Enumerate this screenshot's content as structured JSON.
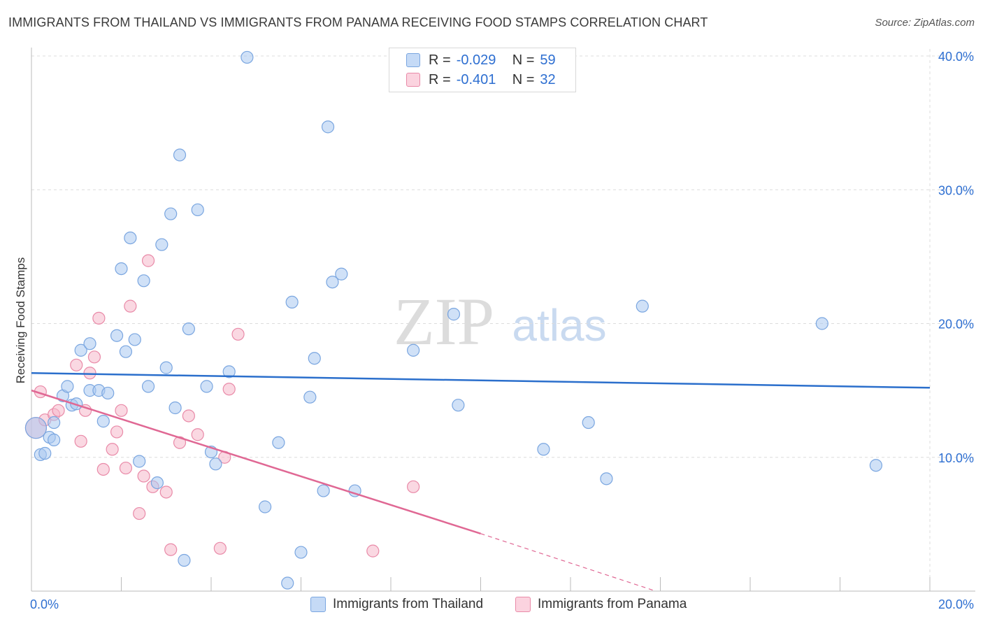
{
  "title": "IMMIGRANTS FROM THAILAND VS IMMIGRANTS FROM PANAMA RECEIVING FOOD STAMPS CORRELATION CHART",
  "source": "Source: ZipAtlas.com",
  "watermark": {
    "zip": "ZIP",
    "atlas": "atlas"
  },
  "legend": {
    "rows": [
      {
        "r_label": "R =",
        "r_value": "-0.029",
        "n_label": "N =",
        "n_value": "59",
        "color": "#a9c8f0"
      },
      {
        "r_label": "R =",
        "r_value": "-0.401",
        "n_label": "N =",
        "n_value": "32",
        "color": "#f5b8cb"
      }
    ]
  },
  "bottom_legend": {
    "thailand": "Immigrants from Thailand",
    "panama": "Immigrants from Panama"
  },
  "chart_data": {
    "type": "scatter",
    "title": "IMMIGRANTS FROM THAILAND VS IMMIGRANTS FROM PANAMA RECEIVING FOOD STAMPS CORRELATION CHART",
    "xlabel": "",
    "ylabel": "Receiving Food Stamps",
    "xlim": [
      0,
      20
    ],
    "ylim": [
      0,
      40
    ],
    "x_tick_labels": [
      "0.0%",
      "20.0%"
    ],
    "y_ticks": [
      10,
      20,
      30,
      40
    ],
    "y_tick_labels": [
      "10.0%",
      "20.0%",
      "30.0%",
      "40.0%"
    ],
    "grid": true,
    "colors": {
      "thailand": "#a9c8f0",
      "thailand_edge": "#7aa6e0",
      "thailand_line": "#2b6fcc",
      "panama": "#f5b8cb",
      "panama_edge": "#e98aa8",
      "panama_line": "#e06894"
    },
    "series": [
      {
        "name": "Immigrants from Thailand",
        "trend": {
          "x": [
            0,
            20
          ],
          "y": [
            16.3,
            15.2
          ]
        },
        "points": [
          [
            0.1,
            12.2
          ],
          [
            0.2,
            10.2
          ],
          [
            0.3,
            10.3
          ],
          [
            0.4,
            11.5
          ],
          [
            0.5,
            11.3
          ],
          [
            0.5,
            12.6
          ],
          [
            0.7,
            14.6
          ],
          [
            0.8,
            15.3
          ],
          [
            0.9,
            13.9
          ],
          [
            1.0,
            14.0
          ],
          [
            1.1,
            18.0
          ],
          [
            1.3,
            18.5
          ],
          [
            1.3,
            15.0
          ],
          [
            1.5,
            15.0
          ],
          [
            1.6,
            12.7
          ],
          [
            1.7,
            14.8
          ],
          [
            1.9,
            19.1
          ],
          [
            2.0,
            24.1
          ],
          [
            2.1,
            17.9
          ],
          [
            2.2,
            26.4
          ],
          [
            2.3,
            18.8
          ],
          [
            2.4,
            9.7
          ],
          [
            2.5,
            23.2
          ],
          [
            2.6,
            15.3
          ],
          [
            2.8,
            8.1
          ],
          [
            2.9,
            25.9
          ],
          [
            3.0,
            16.7
          ],
          [
            3.1,
            28.2
          ],
          [
            3.2,
            13.7
          ],
          [
            3.3,
            32.6
          ],
          [
            3.4,
            2.3
          ],
          [
            3.5,
            19.6
          ],
          [
            3.7,
            28.5
          ],
          [
            3.9,
            15.3
          ],
          [
            4.0,
            10.4
          ],
          [
            4.1,
            9.5
          ],
          [
            4.4,
            16.4
          ],
          [
            4.8,
            39.9
          ],
          [
            5.2,
            6.3
          ],
          [
            5.5,
            11.1
          ],
          [
            5.7,
            0.6
          ],
          [
            5.8,
            21.6
          ],
          [
            6.0,
            2.9
          ],
          [
            6.2,
            14.5
          ],
          [
            6.3,
            17.4
          ],
          [
            6.5,
            7.5
          ],
          [
            6.6,
            34.7
          ],
          [
            6.7,
            23.1
          ],
          [
            6.9,
            23.7
          ],
          [
            7.2,
            7.5
          ],
          [
            8.5,
            18.0
          ],
          [
            9.4,
            20.7
          ],
          [
            9.5,
            13.9
          ],
          [
            11.4,
            10.6
          ],
          [
            12.4,
            12.6
          ],
          [
            12.8,
            8.4
          ],
          [
            13.6,
            21.3
          ],
          [
            17.6,
            20.0
          ],
          [
            18.8,
            9.4
          ]
        ]
      },
      {
        "name": "Immigrants from Panama",
        "trend": {
          "x": [
            0,
            10
          ],
          "y": [
            15.0,
            4.3
          ]
        },
        "trend_extension": {
          "x": [
            10,
            13.9
          ],
          "y": [
            4.3,
            0.0
          ]
        },
        "points": [
          [
            0.1,
            12.2
          ],
          [
            0.2,
            14.9
          ],
          [
            0.3,
            12.8
          ],
          [
            0.5,
            13.2
          ],
          [
            0.6,
            13.5
          ],
          [
            1.0,
            16.9
          ],
          [
            1.1,
            11.2
          ],
          [
            1.2,
            13.5
          ],
          [
            1.3,
            16.3
          ],
          [
            1.4,
            17.5
          ],
          [
            1.5,
            20.4
          ],
          [
            1.6,
            9.1
          ],
          [
            1.8,
            10.6
          ],
          [
            1.9,
            11.9
          ],
          [
            2.0,
            13.5
          ],
          [
            2.1,
            9.2
          ],
          [
            2.2,
            21.3
          ],
          [
            2.4,
            5.8
          ],
          [
            2.5,
            8.6
          ],
          [
            2.6,
            24.7
          ],
          [
            2.7,
            7.8
          ],
          [
            3.0,
            7.4
          ],
          [
            3.1,
            3.1
          ],
          [
            3.3,
            11.1
          ],
          [
            3.5,
            13.1
          ],
          [
            3.7,
            11.7
          ],
          [
            4.2,
            3.2
          ],
          [
            4.3,
            10.0
          ],
          [
            4.4,
            15.1
          ],
          [
            4.6,
            19.2
          ],
          [
            7.6,
            3.0
          ],
          [
            8.5,
            7.8
          ]
        ]
      }
    ]
  }
}
